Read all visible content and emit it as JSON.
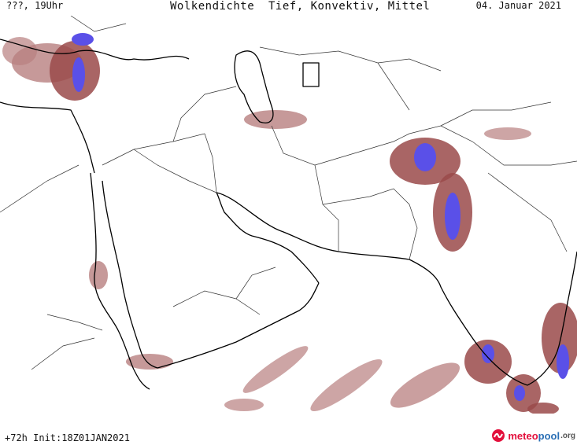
{
  "header": {
    "time_label": "???, 19Uhr",
    "title": "Wolkendichte  Tief, Konvektiv, Mittel",
    "date": "04. Januar 2021"
  },
  "footer": {
    "run_info": "+72h Init:18Z01JAN2021",
    "brand_part1": "meteo",
    "brand_part2": "pool",
    "brand_tld": ".org"
  },
  "map": {
    "type": "weather-forecast-map",
    "colors": {
      "cloud_light": "#b87f7f",
      "cloud_mid": "#9a4a4a",
      "cloud_dense": "#5a50e8",
      "coastline": "#000000",
      "borders": "#333333"
    }
  }
}
